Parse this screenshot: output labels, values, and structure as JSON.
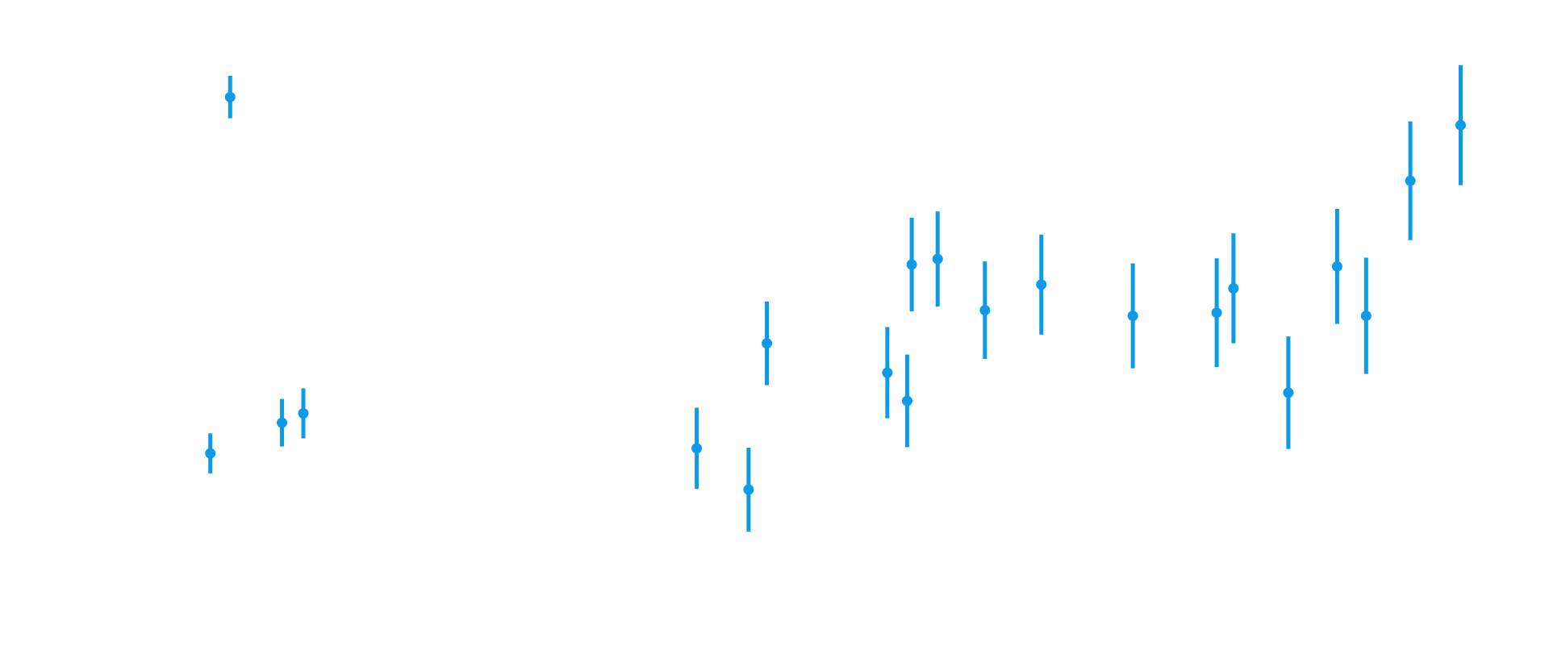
{
  "chart_data": {
    "type": "scatter",
    "error_bars": true,
    "marker_color": "#0d9ae6",
    "title": "",
    "xlabel": "",
    "ylabel": "",
    "axes_visible": false,
    "grid": false,
    "legend": "none",
    "xlim": [
      0,
      100
    ],
    "ylim": [
      0,
      100
    ],
    "points": [
      {
        "x": 13.0,
        "y": 30.7,
        "err_low": 3.2,
        "err_high": 3.2
      },
      {
        "x": 14.3,
        "y": 87.7,
        "err_low": 3.4,
        "err_high": 3.4
      },
      {
        "x": 17.7,
        "y": 35.6,
        "err_low": 3.8,
        "err_high": 3.8
      },
      {
        "x": 19.1,
        "y": 37.1,
        "err_low": 4.0,
        "err_high": 4.0
      },
      {
        "x": 44.9,
        "y": 31.5,
        "err_low": 6.5,
        "err_high": 6.5
      },
      {
        "x": 48.3,
        "y": 24.9,
        "err_low": 6.7,
        "err_high": 6.7
      },
      {
        "x": 49.5,
        "y": 48.3,
        "err_low": 6.7,
        "err_high": 6.7
      },
      {
        "x": 57.4,
        "y": 43.6,
        "err_low": 7.3,
        "err_high": 7.3
      },
      {
        "x": 58.7,
        "y": 39.1,
        "err_low": 7.4,
        "err_high": 7.4
      },
      {
        "x": 59.0,
        "y": 60.9,
        "err_low": 7.5,
        "err_high": 7.5
      },
      {
        "x": 60.7,
        "y": 61.8,
        "err_low": 7.6,
        "err_high": 7.6
      },
      {
        "x": 63.8,
        "y": 53.6,
        "err_low": 7.8,
        "err_high": 7.8
      },
      {
        "x": 67.5,
        "y": 57.7,
        "err_low": 8.0,
        "err_high": 8.0
      },
      {
        "x": 73.5,
        "y": 52.7,
        "err_low": 8.4,
        "err_high": 8.4
      },
      {
        "x": 79.0,
        "y": 53.2,
        "err_low": 8.7,
        "err_high": 8.7
      },
      {
        "x": 80.1,
        "y": 57.1,
        "err_low": 8.8,
        "err_high": 8.8
      },
      {
        "x": 83.7,
        "y": 40.4,
        "err_low": 9.0,
        "err_high": 9.0
      },
      {
        "x": 86.9,
        "y": 60.6,
        "err_low": 9.2,
        "err_high": 9.2
      },
      {
        "x": 88.8,
        "y": 52.7,
        "err_low": 9.3,
        "err_high": 9.3
      },
      {
        "x": 91.7,
        "y": 74.3,
        "err_low": 9.5,
        "err_high": 9.5
      },
      {
        "x": 95.0,
        "y": 83.2,
        "err_low": 9.6,
        "err_high": 9.6
      }
    ]
  }
}
